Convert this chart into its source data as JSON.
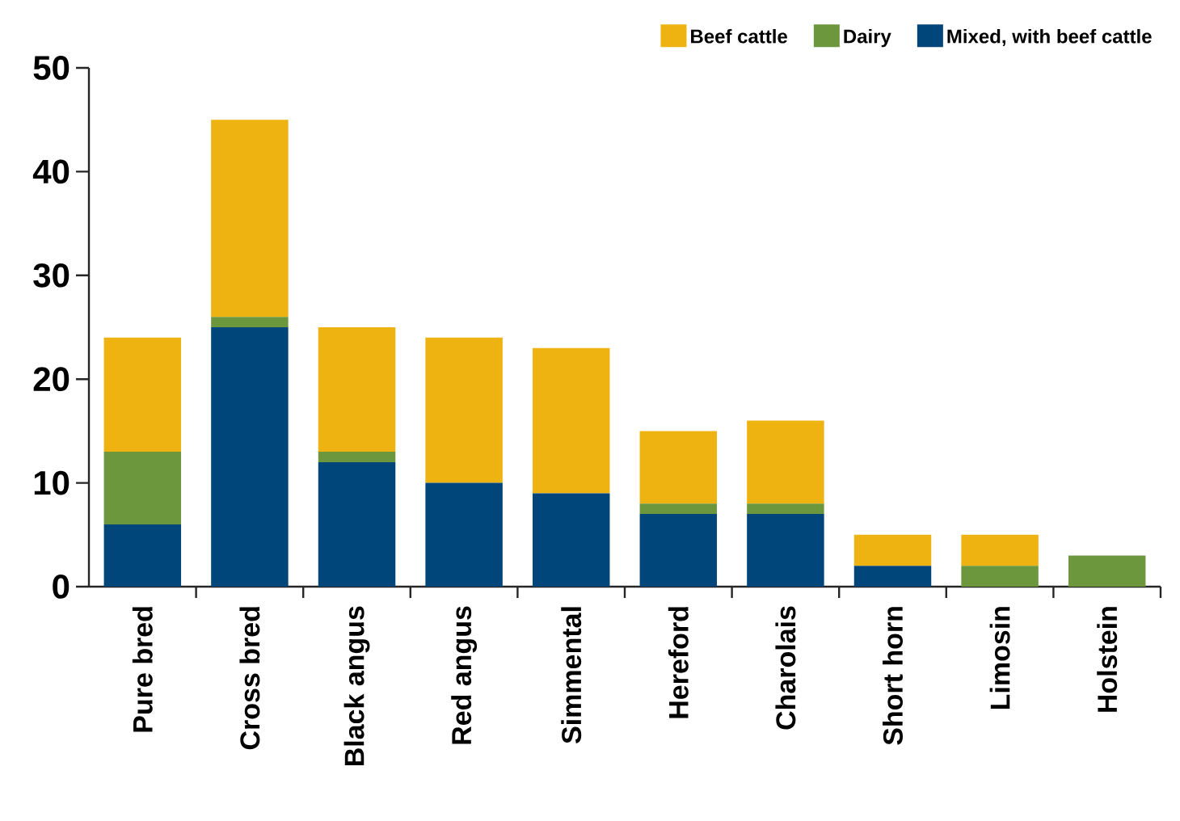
{
  "chart_data": {
    "type": "bar",
    "stacked": true,
    "legend": "top right",
    "categories": [
      "Pure bred",
      "Cross bred",
      "Black angus",
      "Red angus",
      "Simmental",
      "Hereford",
      "Charolais",
      "Short horn",
      "Limosin",
      "Holstein"
    ],
    "series": [
      {
        "name": "Mixed, with beef cattle",
        "color": "#00467a",
        "values": [
          6,
          25,
          12,
          10,
          9,
          7,
          7,
          2,
          0,
          0
        ]
      },
      {
        "name": "Dairy",
        "color": "#6d973c",
        "values": [
          7,
          1,
          1,
          0,
          0,
          1,
          1,
          0,
          2,
          3
        ]
      },
      {
        "name": "Beef cattle",
        "color": "#eeb211",
        "values": [
          11,
          19,
          12,
          14,
          14,
          7,
          8,
          3,
          3,
          0
        ]
      }
    ],
    "ylim": [
      0,
      50
    ],
    "yticks": [
      0,
      10,
      20,
      30,
      40,
      50
    ]
  }
}
